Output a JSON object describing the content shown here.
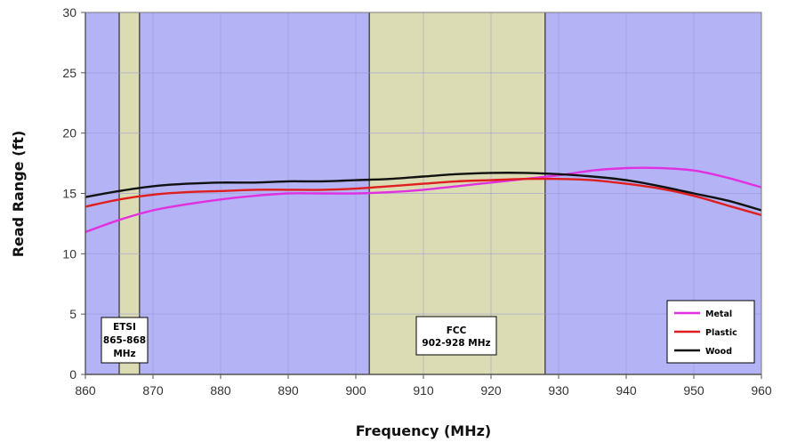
{
  "chart_data": {
    "type": "line",
    "title": "",
    "xlabel": "Frequency (MHz)",
    "ylabel": "Read Range (ft)",
    "xlim": [
      860,
      960
    ],
    "ylim": [
      0,
      30
    ],
    "xticks": [
      860,
      870,
      880,
      890,
      900,
      910,
      920,
      930,
      940,
      950,
      960
    ],
    "yticks": [
      0,
      5,
      10,
      15,
      20,
      25,
      30
    ],
    "grid": true,
    "legend_position": "bottom-right",
    "background_color": "#b3b3f5",
    "band_color": "#dcdcb4",
    "bands": [
      {
        "name": "etsi",
        "x_start": 865,
        "x_end": 868,
        "label_lines": [
          "ETSI",
          "865-868",
          "MHz"
        ]
      },
      {
        "name": "fcc",
        "x_start": 902,
        "x_end": 928,
        "label_lines": [
          "FCC",
          "902-928 MHz"
        ]
      }
    ],
    "series": [
      {
        "name": "Metal",
        "color": "#e030e0",
        "x": [
          860,
          865,
          870,
          875,
          880,
          885,
          890,
          895,
          900,
          905,
          910,
          915,
          920,
          925,
          930,
          935,
          940,
          945,
          950,
          955,
          960
        ],
        "values": [
          11.8,
          12.8,
          13.6,
          14.1,
          14.5,
          14.8,
          15.0,
          15.0,
          15.0,
          15.1,
          15.3,
          15.6,
          15.9,
          16.2,
          16.5,
          16.9,
          17.1,
          17.1,
          16.9,
          16.3,
          15.5
        ]
      },
      {
        "name": "Plastic",
        "color": "#e01e1e",
        "x": [
          860,
          865,
          870,
          875,
          880,
          885,
          890,
          895,
          900,
          905,
          910,
          915,
          920,
          925,
          930,
          935,
          940,
          945,
          950,
          955,
          960
        ],
        "values": [
          13.9,
          14.5,
          14.9,
          15.1,
          15.2,
          15.3,
          15.3,
          15.3,
          15.4,
          15.6,
          15.8,
          16.0,
          16.1,
          16.2,
          16.2,
          16.1,
          15.8,
          15.4,
          14.8,
          14.0,
          13.2
        ]
      },
      {
        "name": "Wood",
        "color": "#111111",
        "x": [
          860,
          865,
          870,
          875,
          880,
          885,
          890,
          895,
          900,
          905,
          910,
          915,
          920,
          925,
          930,
          935,
          940,
          945,
          950,
          955,
          960
        ],
        "values": [
          14.7,
          15.2,
          15.6,
          15.8,
          15.9,
          15.9,
          16.0,
          16.0,
          16.1,
          16.2,
          16.4,
          16.6,
          16.7,
          16.7,
          16.6,
          16.4,
          16.1,
          15.6,
          15.0,
          14.4,
          13.6
        ]
      }
    ]
  }
}
